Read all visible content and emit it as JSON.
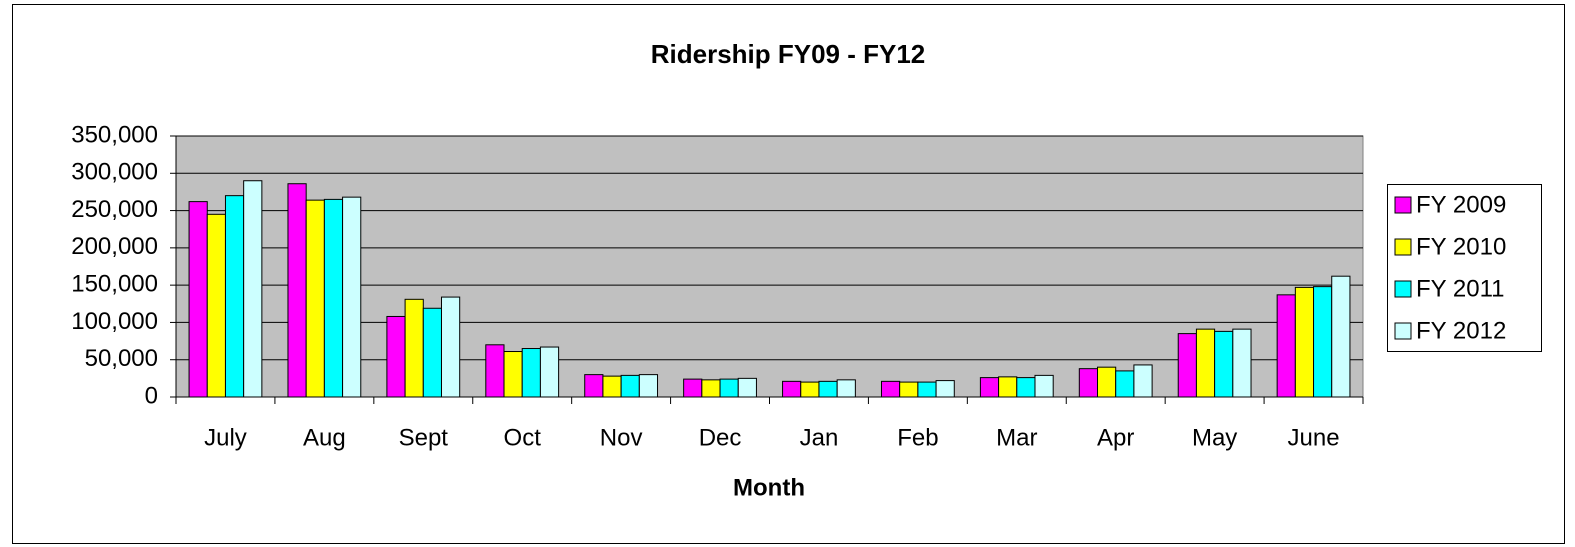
{
  "chart_data": {
    "type": "bar",
    "title": "Ridership FY09 - FY12",
    "x_label": "Month",
    "categories": [
      "July",
      "Aug",
      "Sept",
      "Oct",
      "Nov",
      "Dec",
      "Jan",
      "Feb",
      "Mar",
      "Apr",
      "May",
      "June"
    ],
    "series": [
      {
        "name": "FY 2009",
        "color": "#ff00ff",
        "values": [
          262000,
          286000,
          108000,
          70000,
          30000,
          24000,
          21000,
          21000,
          26000,
          38000,
          85000,
          137000
        ]
      },
      {
        "name": "FY 2010",
        "color": "#ffff00",
        "values": [
          245000,
          264000,
          131000,
          61000,
          28000,
          23000,
          20000,
          20000,
          27000,
          40000,
          91000,
          147000
        ]
      },
      {
        "name": "FY 2011",
        "color": "#00ffff",
        "values": [
          270000,
          265000,
          119000,
          65000,
          29000,
          24000,
          21000,
          20000,
          26000,
          35000,
          88000,
          148000
        ]
      },
      {
        "name": "FY 2012",
        "color": "#ccffff",
        "values": [
          290000,
          268000,
          134000,
          67000,
          30000,
          25000,
          23000,
          22000,
          29000,
          43000,
          91000,
          162000
        ]
      }
    ],
    "ylim": [
      0,
      350000
    ],
    "yticks": [
      0,
      {
        "value": 50000,
        "label": "50,000"
      },
      {
        "value": 100000,
        "label": "100,000"
      },
      {
        "value": 150000,
        "label": "150,000"
      },
      {
        "value": 200000,
        "label": "200,000"
      },
      {
        "value": 250000,
        "label": "250,000"
      },
      {
        "value": 300000,
        "label": "300,000"
      },
      {
        "value": 350000,
        "label": "350,000"
      }
    ],
    "grid": true,
    "legend": "right",
    "plot_background": "#c0c0c0"
  }
}
